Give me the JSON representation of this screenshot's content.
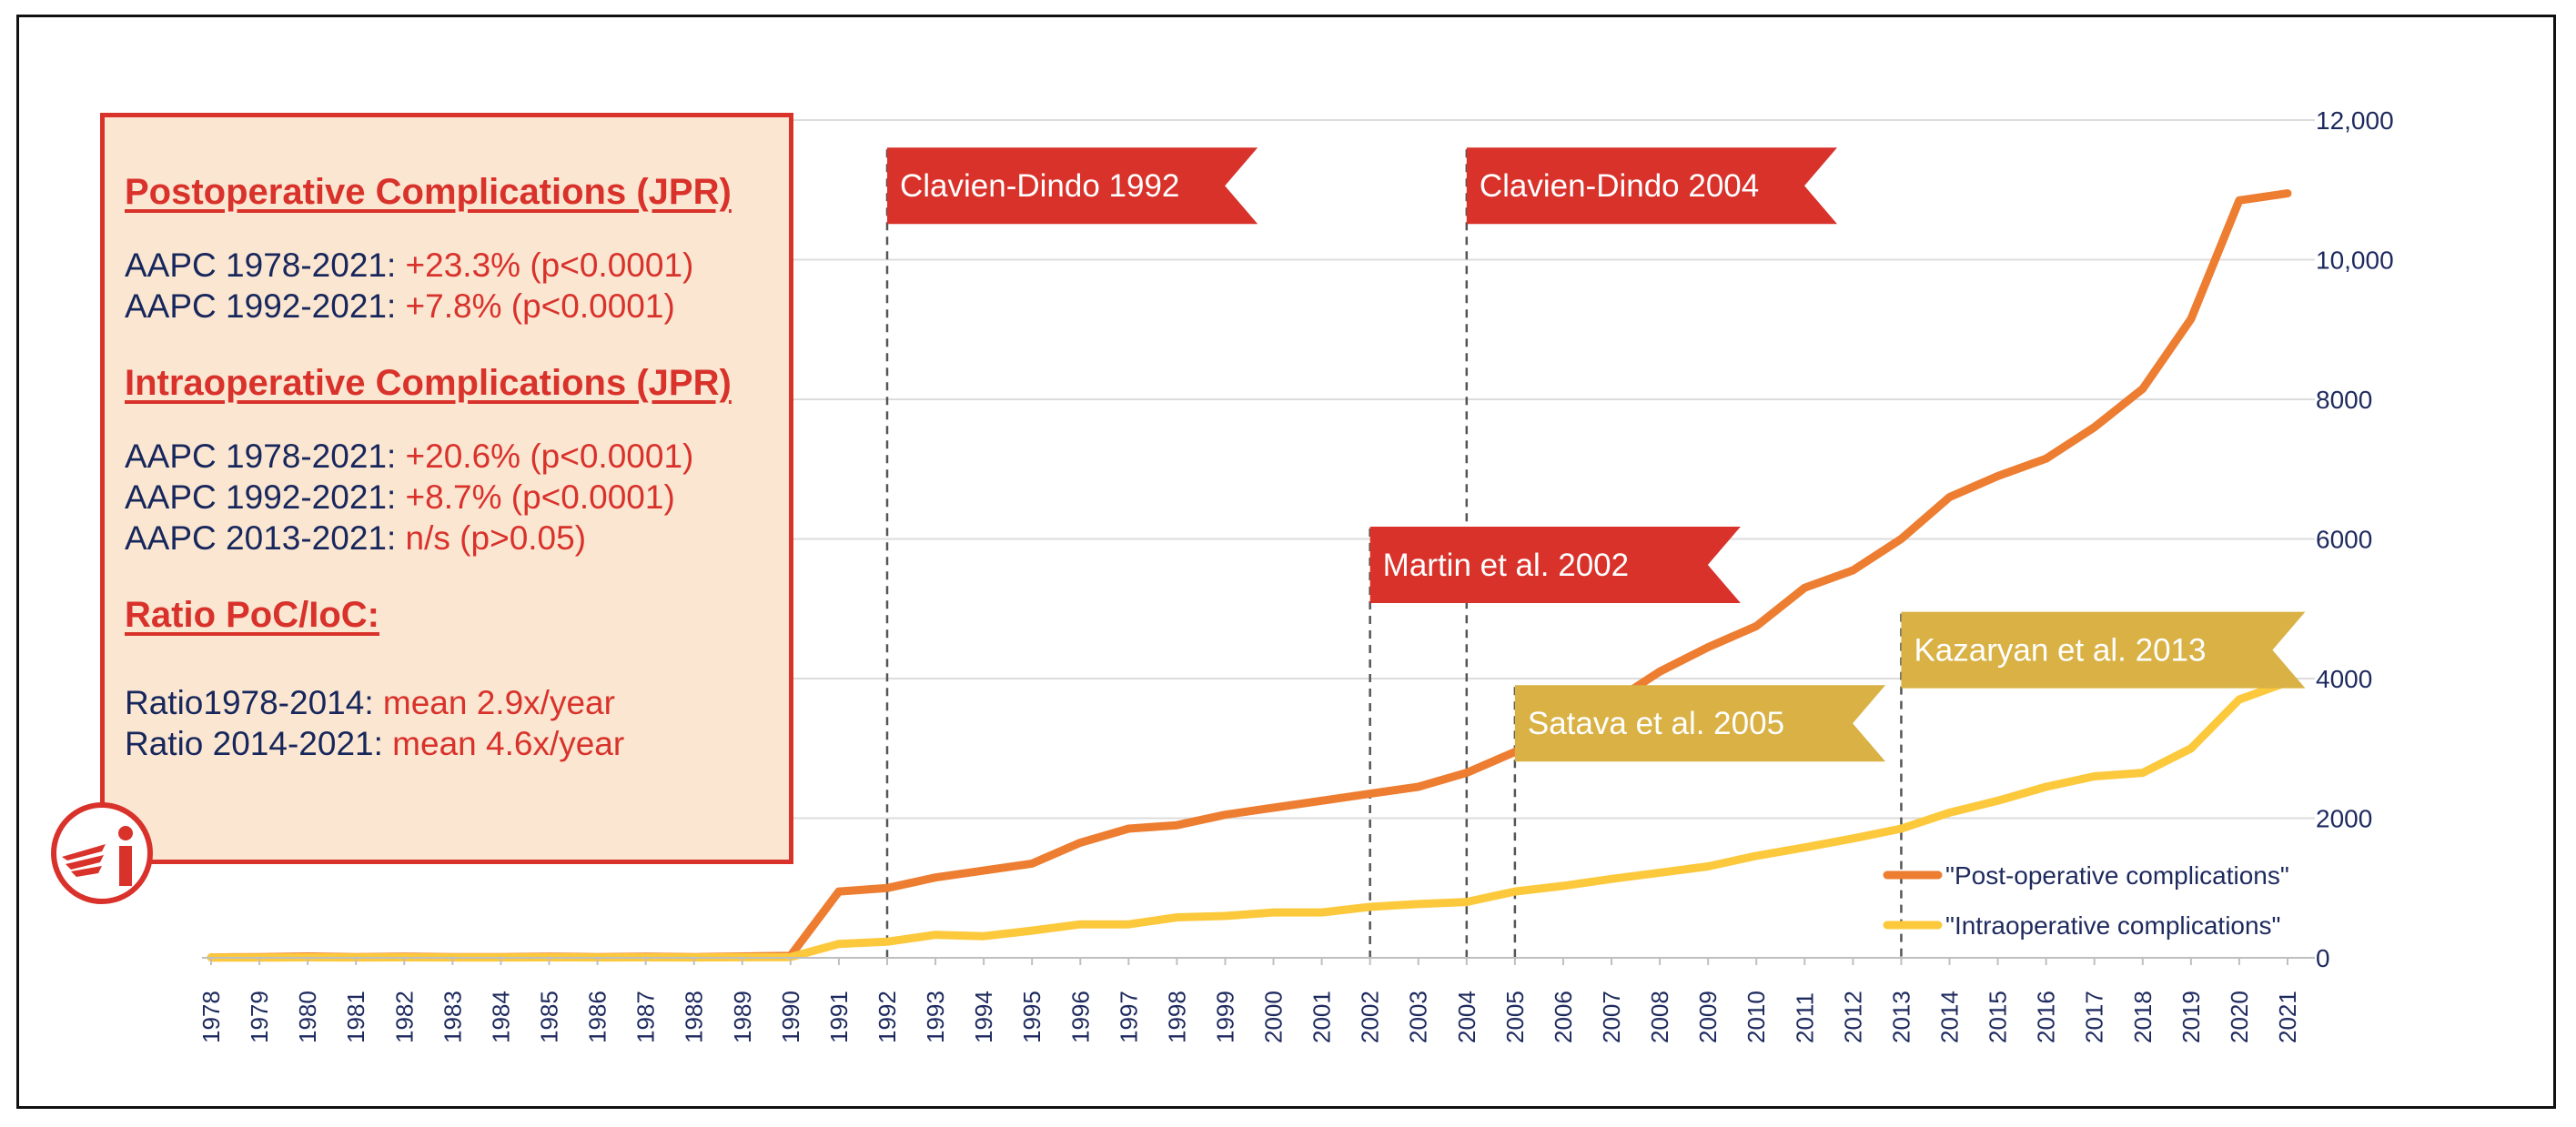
{
  "colors": {
    "post": "#ed7d31",
    "intra": "#fcc93c",
    "red_flag": "#d8322b",
    "gold_flag": "#d9b144",
    "text_dark": "#17275c"
  },
  "info_box": {
    "post_title": "Postoperative Complications (JPR)",
    "post_lines": [
      {
        "label": "AAPC 1978-2021: ",
        "value": "+23.3% (p<0.0001)"
      },
      {
        "label": "AAPC 1992-2021: ",
        "value": "+7.8% (p<0.0001)"
      }
    ],
    "intra_title": "Intraoperative Complications (JPR)",
    "intra_lines": [
      {
        "label": "AAPC 1978-2021: ",
        "value": "+20.6% (p<0.0001)"
      },
      {
        "label": "AAPC 1992-2021: ",
        "value": "+8.7% (p<0.0001)"
      },
      {
        "label": "AAPC 2013-2021: ",
        "value": "n/s (p>0.05)"
      }
    ],
    "ratio_title": "Ratio PoC/IoC:",
    "ratio_lines": [
      {
        "label": "Ratio1978-2014:  ",
        "value": "mean 2.9x/year"
      },
      {
        "label": "Ratio 2014-2021: ",
        "value": "mean 4.6x/year"
      }
    ]
  },
  "chart_data": {
    "type": "line",
    "title": "",
    "xlabel": "",
    "ylabel": "",
    "ylim": [
      0,
      12000
    ],
    "yticks": [
      {
        "value": 0,
        "label": "0"
      },
      {
        "value": 2000,
        "label": "2000"
      },
      {
        "value": 4000,
        "label": "4000"
      },
      {
        "value": 6000,
        "label": "6000"
      },
      {
        "value": 8000,
        "label": "8000"
      },
      {
        "value": 10000,
        "label": "10,000"
      },
      {
        "value": 12000,
        "label": "12,000"
      }
    ],
    "y_axis_side": "right",
    "grid": true,
    "legend_position": "bottom-right",
    "x": [
      "1978",
      "1979",
      "1980",
      "1981",
      "1982",
      "1983",
      "1984",
      "1985",
      "1986",
      "1987",
      "1988",
      "1989",
      "1990",
      "1991",
      "1992",
      "1993",
      "1994",
      "1995",
      "1996",
      "1997",
      "1998",
      "1999",
      "2000",
      "2001",
      "2002",
      "2003",
      "2004",
      "2005",
      "2006",
      "2007",
      "2008",
      "2009",
      "2010",
      "2011",
      "2012",
      "2013",
      "2014",
      "2015",
      "2016",
      "2017",
      "2018",
      "2019",
      "2020",
      "2021"
    ],
    "series": [
      {
        "name": "\"Post-operative complications\"",
        "color_key": "post",
        "values": [
          5,
          10,
          20,
          10,
          15,
          10,
          10,
          15,
          10,
          15,
          10,
          20,
          30,
          950,
          1000,
          1150,
          1250,
          1350,
          1650,
          1850,
          1900,
          2050,
          2150,
          2250,
          2350,
          2450,
          2650,
          2950,
          3250,
          3650,
          4100,
          4450,
          4750,
          5300,
          5550,
          6000,
          6600,
          6900,
          7150,
          7600,
          8150,
          9150,
          10850,
          10950
        ]
      },
      {
        "name": "\"Intraoperative complications\"",
        "color_key": "intra",
        "values": [
          2,
          4,
          6,
          5,
          6,
          5,
          5,
          6,
          5,
          6,
          5,
          8,
          10,
          200,
          230,
          330,
          310,
          390,
          480,
          480,
          580,
          600,
          650,
          650,
          730,
          770,
          800,
          950,
          1030,
          1130,
          1220,
          1310,
          1460,
          1580,
          1710,
          1850,
          2080,
          2250,
          2450,
          2600,
          2650,
          3000,
          3700,
          3950
        ]
      }
    ],
    "annotations": [
      {
        "year": "1992",
        "label": "Clavien-Dindo 1992",
        "color_key": "red_flag",
        "flag_value": 11580
      },
      {
        "year": "2004",
        "label": "Clavien-Dindo 2004",
        "color_key": "red_flag",
        "flag_value": 11580
      },
      {
        "year": "2002",
        "label": "Martin et al. 2002",
        "color_key": "red_flag",
        "flag_value": 6150
      },
      {
        "year": "2005",
        "label": "Satava et al. 2005",
        "color_key": "gold_flag",
        "flag_value": 3880
      },
      {
        "year": "2013",
        "label": "Kazaryan et al. 2013",
        "color_key": "gold_flag",
        "flag_value": 4930
      }
    ]
  }
}
